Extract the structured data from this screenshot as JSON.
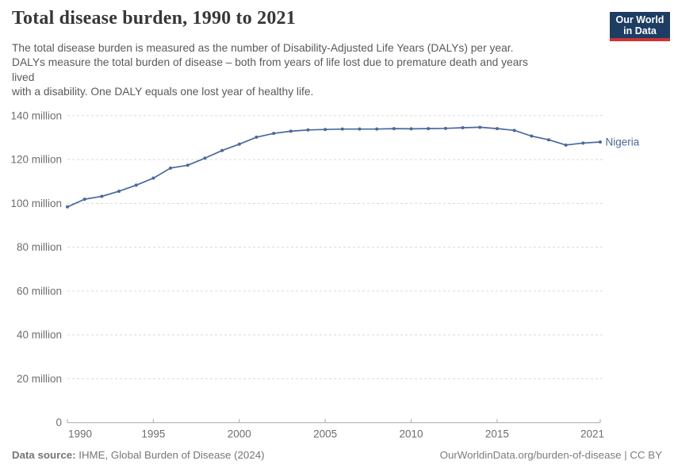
{
  "header": {
    "title": "Total disease burden, 1990 to 2021",
    "subtitle": "The total disease burden is measured as the number of Disability-Adjusted Life Years (DALYs) per year.\nDALYs measure the total burden of disease – both from years of life lost due to premature death and years\nlived\nwith a disability. One DALY equals one lost year of healthy life.",
    "logo": {
      "line1": "Our World",
      "line2": "in Data"
    }
  },
  "colors": {
    "line_blue": "#49689f",
    "logo_navy": "#1d3d63",
    "logo_red": "#cb3438"
  },
  "chart_data": {
    "type": "line",
    "title": "Total disease burden, 1990 to 2021",
    "entity": "Nigeria",
    "unit": "Disability-Adjusted Life Years (DALYs) per year, millions",
    "x": [
      1990,
      1991,
      1992,
      1993,
      1994,
      1995,
      1996,
      1997,
      1998,
      1999,
      2000,
      2001,
      2002,
      2003,
      2004,
      2005,
      2006,
      2007,
      2008,
      2009,
      2010,
      2011,
      2012,
      2013,
      2014,
      2015,
      2016,
      2017,
      2018,
      2019,
      2020,
      2021
    ],
    "series": [
      {
        "name": "Nigeria",
        "color": "#49689f",
        "values": [
          98.4,
          101.9,
          103.2,
          105.5,
          108.3,
          111.5,
          116.1,
          117.4,
          120.6,
          124.1,
          127.0,
          130.2,
          131.9,
          132.9,
          133.5,
          133.7,
          133.9,
          133.9,
          133.9,
          134.1,
          134.0,
          134.1,
          134.2,
          134.5,
          134.7,
          134.1,
          133.3,
          130.7,
          129.0,
          126.6,
          127.5,
          128.0
        ]
      }
    ],
    "ylim": [
      0,
      140
    ],
    "yticks": [
      {
        "value": 140,
        "label": "140 million"
      },
      {
        "value": 120,
        "label": "120 million"
      },
      {
        "value": 100,
        "label": "100 million"
      },
      {
        "value": 80,
        "label": "80 million"
      },
      {
        "value": 60,
        "label": "60 million"
      },
      {
        "value": 40,
        "label": "40 million"
      },
      {
        "value": 20,
        "label": "20 million"
      },
      {
        "value": 0,
        "label": "0"
      }
    ],
    "xticks": [
      1990,
      1995,
      2000,
      2005,
      2010,
      2015,
      2021
    ],
    "grid": "horizontal-dashed",
    "legend_position": "end-of-line-label"
  },
  "footer": {
    "datasource_label": "Data source:",
    "datasource_value": " IHME, Global Burden of Disease (2024)",
    "attribution": "OurWorldinData.org/burden-of-disease | CC BY"
  }
}
